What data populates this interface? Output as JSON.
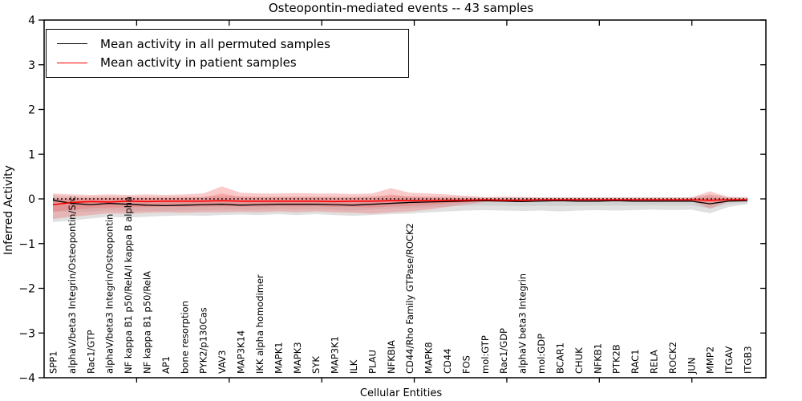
{
  "chart_data": {
    "type": "line",
    "title": "Osteopontin-mediated events -- 43 samples",
    "xlabel": "Cellular Entities",
    "ylabel": "Inferred Activity",
    "ylim": [
      -4,
      4
    ],
    "yticks": [
      -4,
      -3,
      -2,
      -1,
      0,
      1,
      2,
      3,
      4
    ],
    "grid": false,
    "zero_reference_line": 0,
    "legend_position": "upper left",
    "legend": [
      {
        "label": "Mean activity in all permuted samples",
        "color": "#000000"
      },
      {
        "label": "Mean activity in patient samples",
        "color": "#ff0000"
      }
    ],
    "categories": [
      "SPP1",
      "alphaV/beta3 Integrin/Osteopontin/Src",
      "Rac1/GTP",
      "alphaV/beta3 Integrin/Osteopontin",
      "NF kappa B1 p50/RelA/I kappa B alpha",
      "NF kappa B1 p50/RelA",
      "AP1",
      "bone resorption",
      "PYK2/p130Cas",
      "VAV3",
      "MAP3K14",
      "IKK alpha homodimer",
      "MAPK1",
      "MAPK3",
      "SYK",
      "MAP3K1",
      "ILK",
      "PLAU",
      "NFKBIA",
      "CD44/Rho Family GTPase/ROCK2",
      "MAPK8",
      "CD44",
      "FOS",
      "mol:GTP",
      "Rac1/GDP",
      "alphaV beta3 Integrin",
      "mol:GDP",
      "BCAR1",
      "CHUK",
      "NFKB1",
      "PTK2B",
      "RAC1",
      "RELA",
      "ROCK2",
      "JUN",
      "MMP2",
      "ITGAV",
      "ITGB3"
    ],
    "series": [
      {
        "name": "Mean activity in all permuted samples",
        "color": "#000000",
        "band_color": "#999999",
        "values": [
          -0.03,
          -0.1,
          -0.13,
          -0.1,
          -0.12,
          -0.14,
          -0.15,
          -0.14,
          -0.13,
          -0.12,
          -0.14,
          -0.13,
          -0.12,
          -0.12,
          -0.12,
          -0.13,
          -0.14,
          -0.12,
          -0.1,
          -0.08,
          -0.07,
          -0.06,
          -0.05,
          -0.04,
          -0.05,
          -0.06,
          -0.05,
          -0.04,
          -0.05,
          -0.05,
          -0.04,
          -0.05,
          -0.05,
          -0.05,
          -0.05,
          -0.11,
          -0.05,
          -0.04
        ],
        "band_upper": [
          0.08,
          0.06,
          0.05,
          0.06,
          0.05,
          0.05,
          0.05,
          0.05,
          0.05,
          0.06,
          0.06,
          0.05,
          0.05,
          0.05,
          0.05,
          0.05,
          0.05,
          0.06,
          0.06,
          0.06,
          0.05,
          0.05,
          0.05,
          0.04,
          0.04,
          0.04,
          0.04,
          0.04,
          0.04,
          0.04,
          0.04,
          0.04,
          0.04,
          0.04,
          0.04,
          0.1,
          0.05,
          0.04
        ],
        "band_lower": [
          -0.52,
          -0.48,
          -0.44,
          -0.4,
          -0.42,
          -0.4,
          -0.38,
          -0.37,
          -0.38,
          -0.36,
          -0.35,
          -0.36,
          -0.34,
          -0.36,
          -0.34,
          -0.36,
          -0.38,
          -0.36,
          -0.34,
          -0.33,
          -0.3,
          -0.28,
          -0.26,
          -0.25,
          -0.26,
          -0.27,
          -0.26,
          -0.28,
          -0.26,
          -0.25,
          -0.26,
          -0.25,
          -0.24,
          -0.25,
          -0.24,
          -0.32,
          -0.18,
          -0.12
        ]
      },
      {
        "name": "Mean activity in patient samples",
        "color": "#ff0000",
        "band_color": "#f25c5c",
        "values": [
          -0.13,
          -0.08,
          -0.06,
          -0.07,
          -0.05,
          -0.06,
          -0.05,
          -0.05,
          -0.05,
          -0.04,
          -0.05,
          -0.05,
          -0.05,
          -0.05,
          -0.05,
          -0.06,
          -0.05,
          -0.05,
          -0.04,
          -0.04,
          -0.04,
          -0.03,
          -0.03,
          -0.02,
          -0.03,
          -0.03,
          -0.02,
          -0.02,
          -0.02,
          -0.02,
          -0.02,
          -0.02,
          -0.02,
          -0.02,
          -0.02,
          -0.03,
          -0.02,
          -0.02
        ],
        "band_upper": [
          0.12,
          0.1,
          0.09,
          0.1,
          0.09,
          0.1,
          0.09,
          0.1,
          0.12,
          0.28,
          0.14,
          0.12,
          0.12,
          0.13,
          0.12,
          0.12,
          0.11,
          0.12,
          0.24,
          0.14,
          0.12,
          0.1,
          0.07,
          0.04,
          0.05,
          0.04,
          0.03,
          0.03,
          0.03,
          0.03,
          0.03,
          0.03,
          0.03,
          0.03,
          0.03,
          0.17,
          0.04,
          0.03
        ],
        "band_lower": [
          -0.45,
          -0.4,
          -0.36,
          -0.32,
          -0.33,
          -0.31,
          -0.3,
          -0.31,
          -0.3,
          -0.3,
          -0.29,
          -0.3,
          -0.28,
          -0.3,
          -0.28,
          -0.3,
          -0.31,
          -0.33,
          -0.3,
          -0.28,
          -0.24,
          -0.18,
          -0.12,
          -0.07,
          -0.07,
          -0.06,
          -0.05,
          -0.05,
          -0.05,
          -0.05,
          -0.05,
          -0.05,
          -0.05,
          -0.05,
          -0.05,
          -0.22,
          -0.06,
          -0.05
        ]
      }
    ]
  }
}
